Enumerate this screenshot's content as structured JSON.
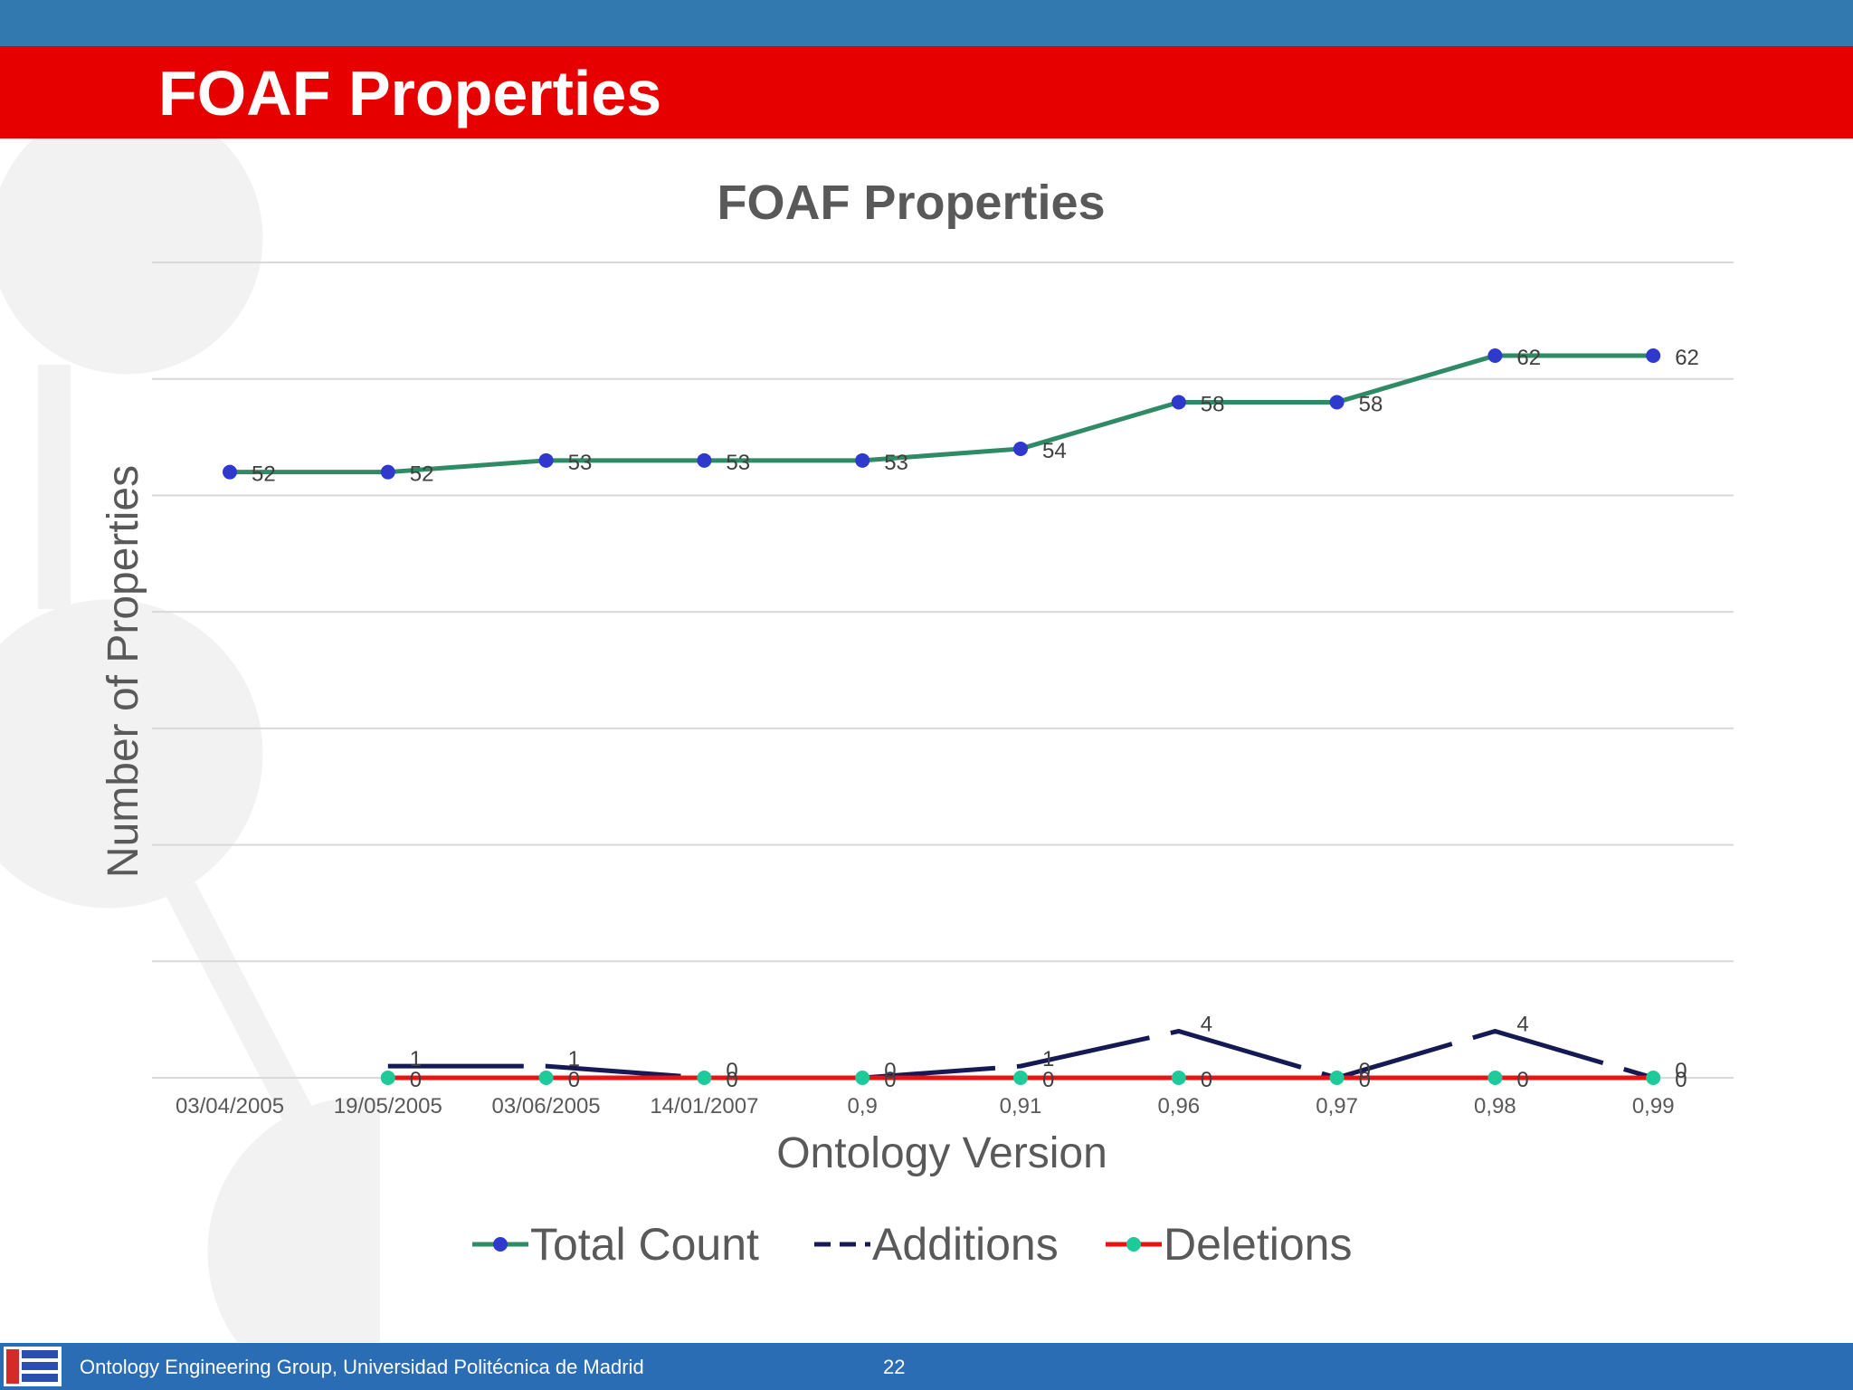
{
  "slide": {
    "title": "FOAF Properties"
  },
  "footer": {
    "organization": "Ontology Engineering Group, Universidad Politécnica de Madrid",
    "page_number": "22",
    "logo_icon": "oeg-logo-icon"
  },
  "colors": {
    "top_bar": "#3279b0",
    "title_bar": "#e60000",
    "footer_bar": "#2a6db4",
    "total_line": "#2e8b66",
    "total_marker": "#2f3acc",
    "additions_line": "#151a54",
    "deletions_line": "#ee1111",
    "deletions_marker": "#1ec99a"
  },
  "chart_data": {
    "type": "line",
    "title": "FOAF Properties",
    "xlabel": "Ontology Version",
    "ylabel": "Number of Properties",
    "categories": [
      "03/04/2005",
      "19/05/2005",
      "03/06/2005",
      "14/01/2007",
      "0,9",
      "0,91",
      "0,96",
      "0,97",
      "0,98",
      "0,99"
    ],
    "ylim": [
      0,
      70
    ],
    "grid": true,
    "legend_position": "bottom",
    "series": [
      {
        "name": "Total Count",
        "values": [
          52,
          52,
          53,
          53,
          53,
          54,
          58,
          58,
          62,
          62
        ],
        "style": "solid",
        "markers": true
      },
      {
        "name": "Additions",
        "values": [
          null,
          1,
          1,
          0,
          0,
          1,
          4,
          0,
          4,
          0
        ],
        "style": "dashed",
        "markers": false
      },
      {
        "name": "Deletions",
        "values": [
          null,
          0,
          0,
          0,
          0,
          0,
          0,
          0,
          0,
          0
        ],
        "style": "solid",
        "markers": true
      }
    ]
  }
}
